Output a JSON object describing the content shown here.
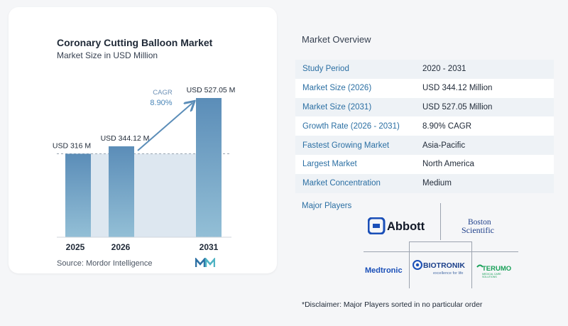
{
  "chart": {
    "title": "Coronary Cutting Balloon Market",
    "subtitle": "Market Size in USD Million",
    "source": "Source:  Mordor Intelligence",
    "cagr_label": "CAGR",
    "cagr_value": "8.90%",
    "colors": {
      "bar_top": "#5b8db8",
      "bar_bottom": "#8fb9d3",
      "fill": "#dde7f0",
      "arrow": "#5b8db8"
    }
  },
  "chart_data": {
    "type": "bar",
    "title": "Coronary Cutting Balloon Market",
    "subtitle": "Market Size in USD Million",
    "categories": [
      "2025",
      "2026",
      "2031"
    ],
    "values": [
      316,
      344.12,
      527.05
    ],
    "data_labels": [
      "USD 316 M",
      "USD 344.12 M",
      "USD 527.05 M"
    ],
    "annotation": "CAGR 8.90%",
    "grid": false
  },
  "overview": {
    "title": "Market Overview",
    "rows": [
      {
        "label": "Study Period",
        "value": "2020 - 2031"
      },
      {
        "label": "Market Size (2026)",
        "value": "USD 344.12 Million"
      },
      {
        "label": "Market Size (2031)",
        "value": "USD 527.05 Million"
      },
      {
        "label": "Growth Rate (2026 - 2031)",
        "value": "8.90% CAGR"
      },
      {
        "label": "Fastest Growing Market",
        "value": "Asia-Pacific"
      },
      {
        "label": "Largest Market",
        "value": "North America"
      },
      {
        "label": "Market Concentration",
        "value": "Medium"
      }
    ]
  },
  "players": {
    "title": "Major Players",
    "logos": [
      "Abbott",
      "Boston Scientific",
      "Medtronic",
      "BIOTRONIK",
      "TERUMO"
    ],
    "biotronik_tagline": "excellence for life",
    "terumo_tagline": "MEDICAL CARE SOLUTIONS"
  },
  "disclaimer": "*Disclaimer: Major Players sorted in no particular order"
}
